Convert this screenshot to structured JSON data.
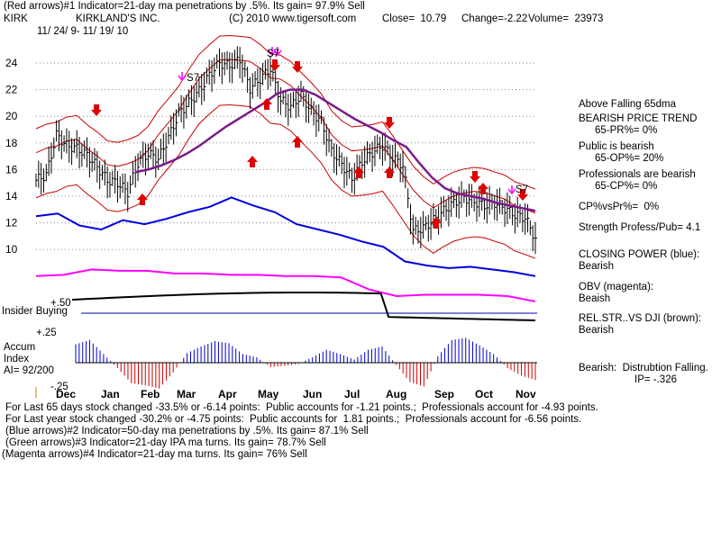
{
  "header": {
    "line1": "(Red arrows)#1 Indicator=21-day ma penetrations by .5%. Its gain= 97.9% Sell",
    "ticker": "KIRK",
    "company": "KIRKLAND'S INC.",
    "copyright": "(C) 2010 www.tigersoft.com",
    "close": "Close=  10.79",
    "change": "Change=-2.22",
    "volume": "Volume=  23973",
    "range": "11/ 24/ 9- 11/ 19/ 10"
  },
  "right_panel": {
    "trend": "Above Falling 65dma",
    "bearish_trend": "BEARISH PRICE TREND",
    "pr_pct": "65-PR%= 0%",
    "public": "Public is bearish",
    "op_pct": "65-OP%= 20%",
    "professionals": "Professionals are bearish",
    "cp_pct": "65-CP%= 0%",
    "cpvspr": "CP%vsPr%=  0%",
    "strength": "Strength Profess/Pub= 4.1",
    "closing_power_label": "CLOSING POWER (blue):",
    "closing_power_value": "Bearish",
    "obv_label": "OBV (magenta):",
    "obv_value": "Beaish",
    "relstr_label": "REL.STR..VS DJI (brown):",
    "relstr_value": "Bearish",
    "accum_label": "Bearish:  Distrubtion Falling.",
    "ip_value": "IP= -.326"
  },
  "footer": {
    "line1": "For Last 65 days stock changed -33.5% or -6.14 points:  Public accounts for -1.21 points.;  Professionals account for -4.93 points.",
    "line2": "For Last year stock changed -30.2% or -4.75 points:  Public accounts for  1.81 points.;  Professionals account for -6.56 points.",
    "line3": "(Blue arrows)#2 Indicator=50-day ma penetrations by .5%. Its gain= 87.1% Sell",
    "line4": "(Green arrows)#3 Indicator=21-day IPA ma turns. Its gain= 78.7% Sell",
    "line5": "(Magenta arrows)#4 Indicator=21-day ma turns. Its gain= 76% Sell"
  },
  "chart_data": {
    "type": "line",
    "price_ticks": [
      24,
      22,
      20,
      18,
      16,
      14,
      12,
      10
    ],
    "months": [
      "Dec",
      "Jan",
      "Feb",
      "Mar",
      "Apr",
      "May",
      "Jun",
      "Jul",
      "Aug",
      "Sep",
      "Oct",
      "Nov"
    ],
    "insider_label": "Insider Buying",
    "insider_tick": "+.50",
    "accum_title": "Accum",
    "accum_sub": "Index",
    "accum_ai": "AI= 92/200",
    "accum_ticks": [
      "+.25",
      "-.25"
    ],
    "s7_label": "S7",
    "price_close": [
      15.2,
      15.6,
      18.6,
      17.8,
      17.6,
      17.1,
      16.2,
      15.2,
      15.0,
      14.3,
      16.5,
      17.2,
      16.8,
      18.4,
      20.2,
      21.0,
      21.9,
      23.1,
      24.0,
      23.8,
      24.3,
      22.1,
      22.8,
      23.6,
      21.2,
      20.7,
      21.6,
      20.4,
      19.6,
      17.4,
      16.4,
      15.3,
      16.6,
      17.3,
      17.8,
      16.9,
      16.3,
      11.4,
      11.6,
      12.2,
      12.9,
      13.5,
      13.9,
      13.6,
      13.3,
      13.5,
      13.1,
      12.6,
      12.4,
      10.8
    ],
    "ma65": [
      15.8,
      16.0,
      16.3,
      16.7,
      17.2,
      17.8,
      18.5,
      19.2,
      19.8,
      20.4,
      21.0,
      21.7,
      22.0,
      22.0,
      21.6,
      21.0,
      20.4,
      19.8,
      19.3,
      18.8,
      18.2,
      17.7,
      16.5,
      15.4,
      14.6,
      14.2,
      14.0,
      13.8,
      13.5,
      13.3,
      13.1,
      12.9
    ],
    "closing_power": [
      12.5,
      12.7,
      11.8,
      11.5,
      12.2,
      11.9,
      12.3,
      12.8,
      13.2,
      13.9,
      13.3,
      12.8,
      11.9,
      11.5,
      11.1,
      10.6,
      10.2,
      9.1,
      8.8,
      8.6,
      8.7,
      8.5,
      8.3,
      8.0
    ],
    "obv": [
      8.0,
      8.1,
      8.5,
      8.4,
      8.4,
      8.2,
      8.2,
      8.1,
      8.1,
      8.0,
      8.0,
      7.9,
      7.0,
      6.5,
      6.6,
      6.6,
      6.6,
      6.5,
      6.1
    ],
    "accum_values": [
      0.17,
      0.21,
      0.08,
      -0.05,
      -0.19,
      -0.21,
      -0.24,
      -0.09,
      0.09,
      0.15,
      0.2,
      0.18,
      0.08,
      0.05,
      -0.04,
      -0.03,
      -0.01,
      0.05,
      0.12,
      0.08,
      0.03,
      0.12,
      0.15,
      -0.02,
      -0.18,
      -0.22,
      0.06,
      0.21,
      0.23,
      0.16,
      0.08,
      -0.05,
      -0.12,
      -0.16
    ]
  }
}
